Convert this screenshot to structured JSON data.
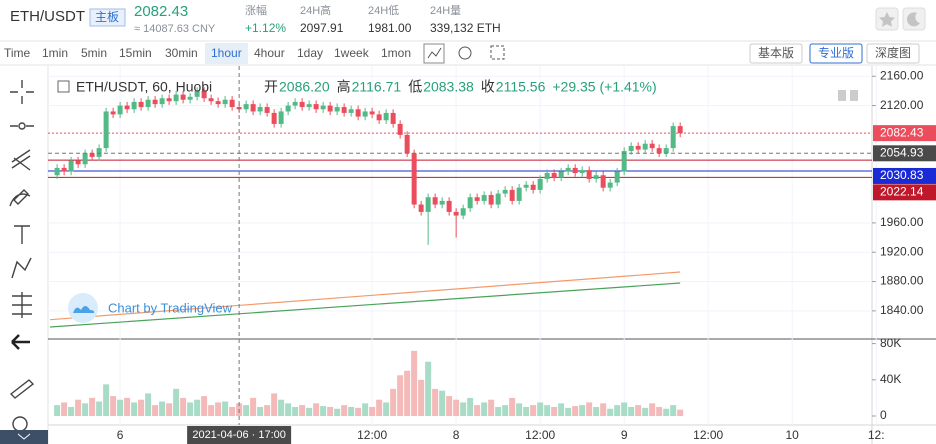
{
  "header": {
    "symbol": "ETH/USDT",
    "board": "主板",
    "price": "2082.43",
    "cny": "≈ 14087.63 CNY",
    "stats": [
      {
        "label": "涨幅",
        "value": "+1.12%"
      },
      {
        "label": "24H高",
        "value": "2097.91"
      },
      {
        "label": "24H低",
        "value": "1981.00"
      },
      {
        "label": "24H量",
        "value": "339,132 ETH"
      }
    ]
  },
  "toolbar": {
    "intervals": [
      "Time",
      "1min",
      "5min",
      "15min",
      "30min",
      "1hour",
      "4hour",
      "1day",
      "1week",
      "1mon"
    ],
    "views": [
      "基本版",
      "专业版",
      "深度图"
    ]
  },
  "legend": {
    "title": "ETH/USDT, 60, Huobi",
    "open_label": "开",
    "open": "2086.20",
    "high_label": "高",
    "high": "2116.71",
    "low_label": "低",
    "low": "2083.38",
    "close_label": "收",
    "close": "2115.56",
    "change": "+29.35 (+1.41%)"
  },
  "watermark": "Chart by TradingView",
  "chart_data": {
    "type": "candlestick",
    "up_color": "#53b987",
    "down_color": "#eb4d5c",
    "open": [
      2025,
      2035,
      2030,
      2045,
      2040,
      2055,
      2050,
      2062,
      2112,
      2108,
      2120,
      2115,
      2125,
      2118,
      2128,
      2122,
      2130,
      2126,
      2135,
      2128,
      2132,
      2140,
      2130,
      2126,
      2122,
      2128,
      2118,
      2115,
      2122,
      2112,
      2118,
      2110,
      2095,
      2112,
      2120,
      2125,
      2118,
      2122,
      2115,
      2120,
      2112,
      2118,
      2110,
      2115,
      2105,
      2112,
      2108,
      2100,
      2110,
      2095,
      2080,
      2055,
      1985,
      1975,
      1995,
      1985,
      1990,
      1975,
      1970,
      1980,
      1995,
      1990,
      1998,
      1985,
      2000,
      2005,
      1990,
      2008,
      2012,
      2005,
      2020,
      2028,
      2022,
      2030,
      2035,
      2028,
      2032,
      2020,
      2025,
      2008,
      2015,
      2030,
      2058,
      2065,
      2060,
      2068,
      2062,
      2055,
      2062,
      2092
    ],
    "high": [
      2040,
      2040,
      2050,
      2050,
      2060,
      2060,
      2067,
      2117,
      2117,
      2125,
      2125,
      2130,
      2130,
      2133,
      2133,
      2135,
      2135,
      2140,
      2140,
      2137,
      2145,
      2145,
      2135,
      2131,
      2133,
      2133,
      2123,
      2127,
      2127,
      2123,
      2123,
      2115,
      2117,
      2125,
      2130,
      2130,
      2127,
      2127,
      2125,
      2125,
      2123,
      2123,
      2120,
      2120,
      2117,
      2117,
      2113,
      2115,
      2115,
      2100,
      2085,
      2060,
      1990,
      2000,
      2000,
      1995,
      1995,
      1980,
      1985,
      2000,
      2000,
      2003,
      2003,
      2005,
      2010,
      2010,
      2013,
      2017,
      2017,
      2025,
      2033,
      2033,
      2035,
      2040,
      2040,
      2037,
      2037,
      2030,
      2030,
      2020,
      2035,
      2063,
      2070,
      2070,
      2073,
      2073,
      2067,
      2067,
      2097,
      2097
    ],
    "low": [
      2020,
      2025,
      2025,
      2035,
      2035,
      2045,
      2045,
      2057,
      2103,
      2103,
      2110,
      2110,
      2113,
      2113,
      2117,
      2117,
      2121,
      2121,
      2123,
      2123,
      2127,
      2125,
      2121,
      2117,
      2117,
      2113,
      2110,
      2110,
      2107,
      2107,
      2105,
      2090,
      2090,
      2107,
      2115,
      2113,
      2113,
      2110,
      2110,
      2107,
      2107,
      2105,
      2105,
      2100,
      2100,
      2103,
      2095,
      2095,
      2090,
      2075,
      2050,
      1980,
      1970,
      1930,
      1980,
      1980,
      1970,
      1940,
      1965,
      1975,
      1985,
      1985,
      1980,
      1980,
      1995,
      1985,
      1985,
      2003,
      2000,
      2000,
      2015,
      2017,
      2017,
      2025,
      2023,
      2023,
      2015,
      2015,
      2003,
      2003,
      2010,
      2025,
      2053,
      2055,
      2055,
      2057,
      2050,
      2050,
      2057,
      2077
    ],
    "close": [
      2035,
      2030,
      2045,
      2040,
      2055,
      2050,
      2062,
      2112,
      2108,
      2120,
      2115,
      2125,
      2118,
      2128,
      2122,
      2130,
      2126,
      2135,
      2128,
      2132,
      2140,
      2130,
      2126,
      2122,
      2128,
      2118,
      2115,
      2122,
      2112,
      2118,
      2110,
      2095,
      2112,
      2120,
      2125,
      2118,
      2122,
      2115,
      2120,
      2112,
      2118,
      2110,
      2115,
      2105,
      2112,
      2108,
      2100,
      2110,
      2095,
      2080,
      2055,
      1985,
      1975,
      1995,
      1985,
      1990,
      1975,
      1970,
      1980,
      1995,
      1990,
      1998,
      1985,
      2000,
      2005,
      1990,
      2008,
      2012,
      2005,
      2020,
      2028,
      2022,
      2030,
      2035,
      2028,
      2032,
      2020,
      2025,
      2008,
      2015,
      2030,
      2058,
      2065,
      2060,
      2068,
      2062,
      2055,
      2062,
      2092,
      2082.43
    ],
    "volume": [
      12000,
      15000,
      10000,
      18000,
      14000,
      20000,
      16000,
      35000,
      22000,
      18000,
      20000,
      15000,
      18000,
      25000,
      12000,
      16000,
      14000,
      30000,
      20000,
      15000,
      18000,
      22000,
      12000,
      15000,
      16000,
      10000,
      14000,
      12000,
      20000,
      10000,
      12000,
      25000,
      18000,
      14000,
      10000,
      12000,
      9000,
      14000,
      11000,
      10000,
      8000,
      12000,
      10000,
      9000,
      14000,
      10000,
      18000,
      15000,
      30000,
      45000,
      50000,
      72000,
      40000,
      60000,
      30000,
      28000,
      22000,
      18000,
      15000,
      20000,
      12000,
      15000,
      18000,
      10000,
      12000,
      20000,
      14000,
      10000,
      12000,
      15000,
      12000,
      10000,
      14000,
      9000,
      11000,
      12000,
      15000,
      10000,
      14000,
      8000,
      12000,
      15000,
      10000,
      12000,
      9000,
      14000,
      10000,
      8000,
      12000,
      7000
    ],
    "xlim": [
      -1.3,
      116.4
    ],
    "xticks": [
      {
        "value": 9,
        "label": "6"
      },
      {
        "value": 45,
        "label": "12:00"
      },
      {
        "value": 57,
        "label": "8"
      },
      {
        "value": 69,
        "label": "12:00"
      },
      {
        "value": 81,
        "label": "9"
      },
      {
        "value": 93,
        "label": "12:00"
      },
      {
        "value": 105,
        "label": "10"
      },
      {
        "value": 117,
        "label": "12:"
      }
    ],
    "ylim": [
      1803,
      2174
    ],
    "yticks": [
      {
        "value": 2160,
        "label": "2160.00"
      },
      {
        "value": 2120,
        "label": "2120.00"
      },
      {
        "value": 1960,
        "label": "1960.00"
      },
      {
        "value": 1920,
        "label": "1920.00"
      },
      {
        "value": 1880,
        "label": "1880.00"
      },
      {
        "value": 1840,
        "label": "1840.00"
      }
    ],
    "volume_ylim": [
      0,
      84000
    ],
    "volume_ticks": [
      {
        "value": 80000,
        "label": "80K"
      },
      {
        "value": 40000,
        "label": "40K"
      },
      0
    ],
    "grid": true,
    "price_lines": [
      {
        "value": 2082.43,
        "label": "2082.43",
        "color": "#eb4d5c",
        "style": "dotted"
      },
      {
        "value": 2045.6,
        "color": "#c0182a",
        "style": "solid"
      },
      {
        "value": 2030.83,
        "label": "2030.83",
        "color": "#1a2bd6",
        "style": "solid"
      },
      {
        "value": 2022.14,
        "label": "2022.14",
        "color": "#c0182a",
        "style": "solid"
      }
    ],
    "trend_lines": [
      {
        "color": "#f39a6b",
        "x": [
          -1,
          89
        ],
        "values": [
          1828,
          1893
        ]
      },
      {
        "color": "#4aa35a",
        "x": [
          -1,
          89
        ],
        "values": [
          1818,
          1878
        ]
      }
    ],
    "crosshair": {
      "x": 26,
      "x_label": "2021-04-06 · 17:00",
      "y": 2054.93,
      "y_label": "2054.93"
    }
  }
}
